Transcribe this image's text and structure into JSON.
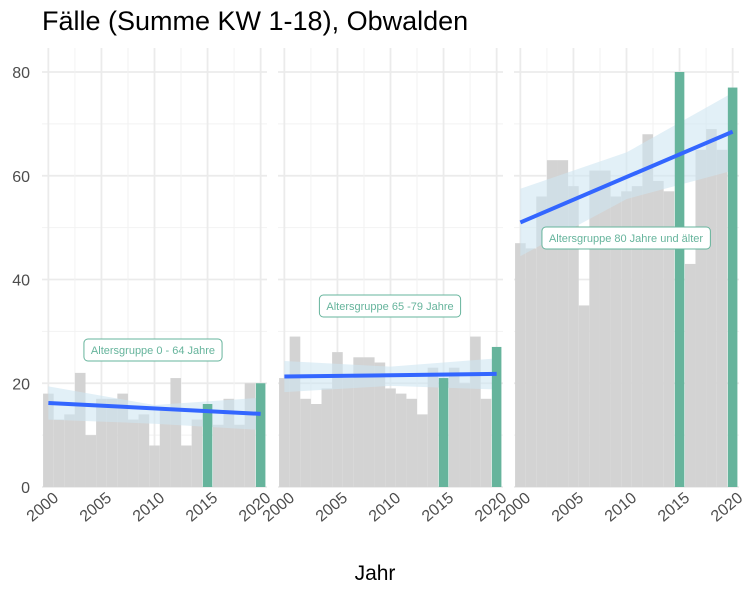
{
  "chart_data": {
    "type": "bar",
    "title": "Fälle (Summe KW 1-18), Obwalden",
    "xlabel": "Jahr",
    "ylabel": "",
    "ylim": [
      0,
      80
    ],
    "y_ticks": [
      0,
      20,
      40,
      60,
      80
    ],
    "x_ticks": [
      2000,
      2005,
      2010,
      2015,
      2020
    ],
    "xlim": [
      1999.4,
      2020.6
    ],
    "grid": true,
    "colors": {
      "historic_bar": "#d3d3d3",
      "highlight_bar": "#66b49c",
      "trend_line": "#3366ff",
      "confidence_band": "#cfe6f1",
      "label_text": "#66b49c",
      "grid": "#ebebeb"
    },
    "highlight_years": [
      2015,
      2020
    ],
    "panels": [
      {
        "label": "Altersgruppe 0 - 64 Jahre",
        "years": [
          2000,
          2001,
          2002,
          2003,
          2004,
          2005,
          2006,
          2007,
          2008,
          2009,
          2010,
          2011,
          2012,
          2013,
          2014,
          2015,
          2016,
          2017,
          2018,
          2019,
          2020
        ],
        "values": [
          18,
          13,
          14,
          22,
          10,
          17,
          17,
          18,
          13,
          14,
          8,
          15,
          21,
          8,
          13,
          16,
          12,
          17,
          12,
          20,
          20
        ],
        "trend": {
          "start": [
            2000,
            16.2
          ],
          "end": [
            2020,
            14.1
          ]
        },
        "band_lower": [
          13.0,
          12.2,
          11.0
        ],
        "band_upper": [
          19.4,
          15.8,
          17.2
        ],
        "band_x": [
          2000,
          2010,
          2020
        ]
      },
      {
        "label": "Altersgruppe 65 -79 Jahre",
        "years": [
          2000,
          2001,
          2002,
          2003,
          2004,
          2005,
          2006,
          2007,
          2008,
          2009,
          2010,
          2011,
          2012,
          2013,
          2014,
          2015,
          2016,
          2017,
          2018,
          2019,
          2020
        ],
        "values": [
          21,
          29,
          17,
          16,
          19,
          26,
          21,
          25,
          25,
          24,
          19,
          18,
          17,
          14,
          23,
          21,
          23,
          20,
          29,
          17,
          27
        ],
        "trend": {
          "start": [
            2000,
            21.3
          ],
          "end": [
            2020,
            21.8
          ]
        },
        "band_lower": [
          18.3,
          19.5,
          18.8
        ],
        "band_upper": [
          24.3,
          23.2,
          24.8
        ],
        "band_x": [
          2000,
          2010,
          2020
        ]
      },
      {
        "label": "Altersgruppe 80 Jahre und älter",
        "years": [
          2000,
          2001,
          2002,
          2003,
          2004,
          2005,
          2006,
          2007,
          2008,
          2009,
          2010,
          2011,
          2012,
          2013,
          2014,
          2015,
          2016,
          2017,
          2018,
          2019,
          2020
        ],
        "values": [
          47,
          46,
          56,
          63,
          63,
          58,
          35,
          61,
          61,
          56,
          57,
          58,
          68,
          59,
          57,
          80,
          43,
          65,
          69,
          65,
          77
        ],
        "trend": {
          "start": [
            2000,
            51.0
          ],
          "end": [
            2020,
            68.5
          ]
        },
        "band_lower": [
          44.5,
          55.5,
          61.0
        ],
        "band_upper": [
          57.5,
          64.5,
          76.0
        ],
        "band_x": [
          2000,
          2010,
          2020
        ]
      }
    ]
  }
}
